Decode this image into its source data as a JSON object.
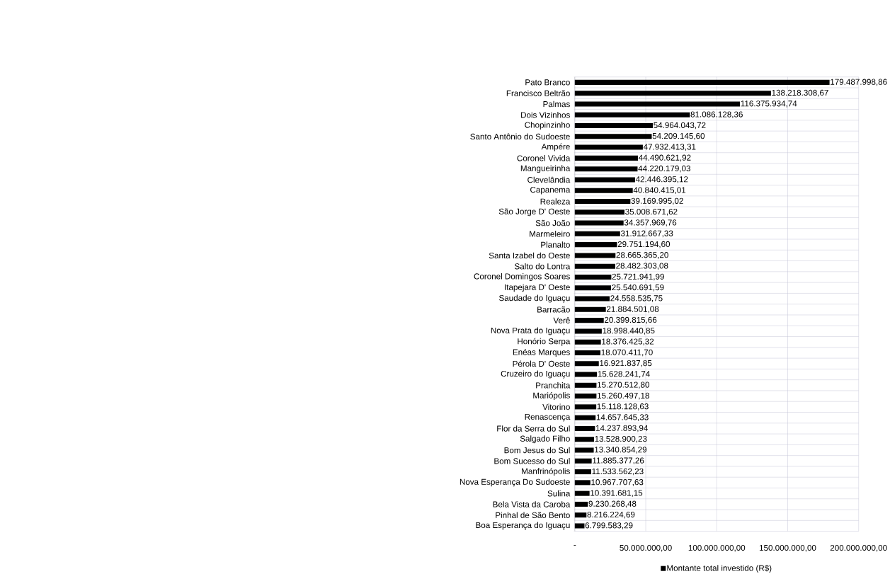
{
  "chart_data": {
    "type": "bar",
    "orientation": "horizontal",
    "categories": [
      "Pato Branco",
      "Francisco Beltrão",
      "Palmas",
      "Dois Vizinhos",
      "Chopinzinho",
      "Santo Antônio do Sudoeste",
      "Ampére",
      "Coronel Vivida",
      "Mangueirinha",
      "Clevelândia",
      "Capanema",
      "Realeza",
      "São Jorge D' Oeste",
      "São João",
      "Marmeleiro",
      "Planalto",
      "Santa Izabel do Oeste",
      "Salto do Lontra",
      "Coronel Domingos Soares",
      "Itapejara D' Oeste",
      "Saudade do Iguaçu",
      "Barracão",
      "Verê",
      "Nova Prata do Iguaçu",
      "Honório Serpa",
      "Enéas Marques",
      "Pérola D' Oeste",
      "Cruzeiro do Iguaçu",
      "Pranchita",
      "Mariópolis",
      "Vitorino",
      "Renascença",
      "Flor da Serra do Sul",
      "Salgado Filho",
      "Bom Jesus do Sul",
      "Bom Sucesso do Sul",
      "Manfrinópolis",
      "Nova Esperança Do Sudoeste",
      "Sulina",
      "Bela Vista da Caroba",
      "Pinhal de São Bento",
      "Boa Esperança do Iguaçu"
    ],
    "series": [
      {
        "name": "Montante total investido (R$)",
        "color": "#000000",
        "values": [
          179487998.86,
          138218308.67,
          116375934.74,
          81086128.36,
          54964043.72,
          54209145.6,
          47932413.31,
          44490621.92,
          44220179.03,
          42446395.12,
          40840415.01,
          39169995.02,
          35008671.62,
          34357969.76,
          31912667.33,
          29751194.6,
          28665365.2,
          28482303.08,
          25721941.99,
          25540691.59,
          24558535.75,
          21884501.08,
          20399815.66,
          18998440.85,
          18376425.32,
          18070411.7,
          16921837.85,
          15628241.74,
          15270512.8,
          15260497.18,
          15118128.63,
          14657645.33,
          14237893.94,
          13528900.23,
          13340854.29,
          11885377.26,
          11533562.23,
          10967707.63,
          10391681.15,
          9230268.48,
          8216224.69,
          6799583.29
        ],
        "value_labels": [
          "179.487.998,86",
          "138.218.308,67",
          "116.375.934,74",
          "81.086.128,36",
          "54.964.043,72",
          "54.209.145,60",
          "47.932.413,31",
          "44.490.621,92",
          "44.220.179,03",
          "42.446.395,12",
          "40.840.415,01",
          "39.169.995,02",
          "35.008.671,62",
          "34.357.969,76",
          "31.912.667,33",
          "29.751.194,60",
          "28.665.365,20",
          "28.482.303,08",
          "25.721.941,99",
          "25.540.691,59",
          "24.558.535,75",
          "21.884.501,08",
          "20.399.815,66",
          "18.998.440,85",
          "18.376.425,32",
          "18.070.411,70",
          "16.921.837,85",
          "15.628.241,74",
          "15.270.512,80",
          "15.260.497,18",
          "15.118.128,63",
          "14.657.645,33",
          "14.237.893,94",
          "13.528.900,23",
          "13.340.854,29",
          "11.885.377,26",
          "11.533.562,23",
          "10.967.707,63",
          "10.391.681,15",
          "9.230.268,48",
          "8.216.224,69",
          "6.799.583,29"
        ]
      }
    ],
    "xlim": [
      0,
      200000000
    ],
    "xticks": [
      {
        "value": 0,
        "label": "-"
      },
      {
        "value": 50000000,
        "label": "50.000.000,00"
      },
      {
        "value": 100000000,
        "label": "100.000.000,00"
      },
      {
        "value": 150000000,
        "label": "150.000.000,00"
      },
      {
        "value": 200000000,
        "label": "200.000.000,00"
      }
    ],
    "grid": true,
    "legend": "bottom"
  }
}
